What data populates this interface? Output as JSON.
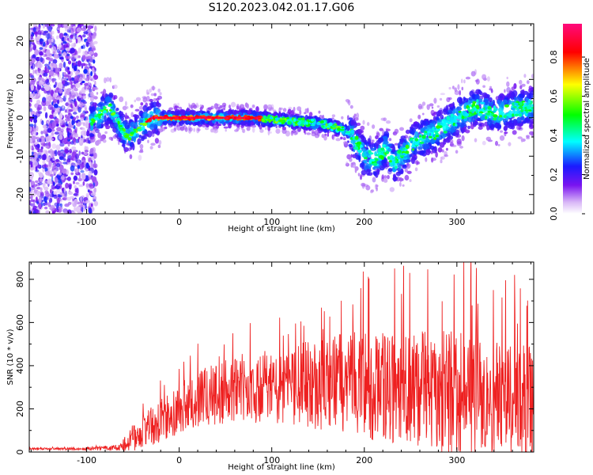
{
  "title": "S120.2023.042.01.17.G06",
  "chart_data": [
    {
      "type": "heatmap",
      "xlabel": "Height of straight line (km)",
      "ylabel": "Frequency (Hz)",
      "xlim": [
        -162,
        383
      ],
      "ylim": [
        -25,
        24.5
      ],
      "x_ticks": [
        -100,
        0,
        100,
        200,
        300
      ],
      "y_ticks": [
        -20,
        -10,
        0,
        10,
        20
      ],
      "colorbar": {
        "label": "Normalized spectral amplitude",
        "range": [
          0,
          0.97
        ],
        "ticks": [
          0.0,
          0.2,
          0.4,
          0.6,
          0.8
        ],
        "colormap": [
          "#ffffff",
          "#d9b8f7",
          "#7a14f0",
          "#1a1aff",
          "#00ffff",
          "#00ff00",
          "#ffff00",
          "#ff0000",
          "#ff0a7c"
        ]
      },
      "ridge_frequency": {
        "x": [
          -97,
          -90,
          -75,
          -62,
          -55,
          -45,
          -30,
          -20,
          0,
          50,
          80,
          100,
          125,
          150,
          170,
          185,
          195,
          200,
          212,
          223,
          232,
          240,
          255,
          275,
          300,
          320,
          340,
          360,
          383
        ],
        "y": [
          -2,
          0,
          3,
          -3,
          -5,
          -3,
          0,
          0,
          0,
          0,
          0,
          -0.5,
          -1,
          -1.5,
          -2.5,
          -4,
          -8,
          -10,
          -11,
          -8,
          -12,
          -10,
          -6,
          -4,
          0,
          3,
          1,
          2,
          3
        ]
      }
    },
    {
      "type": "line",
      "xlabel": "Height of straight line (km)",
      "ylabel": "SNR (10 * v/v)",
      "xlim": [
        -162,
        383
      ],
      "ylim": [
        0,
        880
      ],
      "x_ticks": [
        -100,
        0,
        100,
        200,
        300
      ],
      "y_ticks": [
        0,
        200,
        400,
        600,
        800
      ],
      "series": [
        {
          "color": "#ee2020",
          "envelope": {
            "x": [
              -162,
              -100,
              -65,
              -50,
              -30,
              -10,
              10,
              30,
              50,
              70,
              90,
              110,
              130,
              150,
              170,
              190,
              210,
              230,
              250,
              270,
              290,
              310,
              330,
              350,
              370,
              383
            ],
            "y_mean": [
              15,
              15,
              20,
              60,
              120,
              170,
              230,
              260,
              280,
              290,
              290,
              300,
              310,
              310,
              320,
              320,
              300,
              300,
              290,
              280,
              280,
              260,
              250,
              240,
              230,
              230
            ],
            "y_spread": [
              6,
              8,
              20,
              80,
              120,
              140,
              160,
              180,
              200,
              200,
              210,
              230,
              260,
              280,
              300,
              320,
              330,
              340,
              360,
              380,
              400,
              400,
              400,
              400,
              380,
              360
            ]
          }
        }
      ]
    }
  ]
}
